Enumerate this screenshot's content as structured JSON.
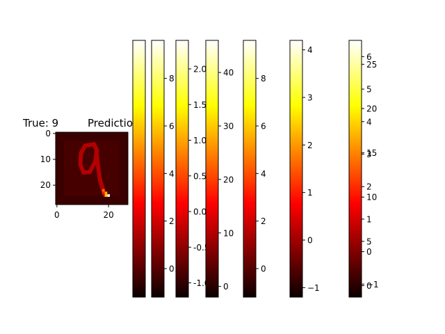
{
  "chart_data": [
    {
      "type": "heatmap",
      "title_left": "True: 9",
      "title_right": "Predictio",
      "colormap": "hot",
      "image_size": [
        28,
        28
      ],
      "x_ticks": [
        0,
        20
      ],
      "y_ticks": [
        0,
        10,
        20
      ],
      "digit_shown": "9"
    },
    {
      "type": "colorbar",
      "colormap": "hot",
      "range": [
        -1.8,
        9.4
      ],
      "ticks": [],
      "tick_labels": []
    },
    {
      "type": "colorbar",
      "colormap": "hot",
      "range": [
        -1.2,
        9.6
      ],
      "ticks": [
        0,
        2,
        4,
        6,
        8
      ],
      "tick_labels": [
        "0",
        "2",
        "4",
        "6",
        "8"
      ]
    },
    {
      "type": "colorbar",
      "colormap": "hot",
      "range": [
        -1.2,
        2.4
      ],
      "ticks": [
        -1.0,
        -0.5,
        0.0,
        0.5,
        1.0,
        1.5,
        2.0
      ],
      "tick_labels": [
        "-1.0",
        "-0.5",
        "0.0",
        "0.5",
        "1.0",
        "1.5",
        "2.0"
      ]
    },
    {
      "type": "colorbar",
      "colormap": "hot",
      "range": [
        -2,
        46
      ],
      "ticks": [
        0,
        10,
        20,
        30,
        40
      ],
      "tick_labels": [
        "0",
        "10",
        "20",
        "30",
        "40"
      ]
    },
    {
      "type": "colorbar",
      "colormap": "hot",
      "range": [
        -1.2,
        9.6
      ],
      "ticks": [
        0,
        2,
        4,
        6,
        8
      ],
      "tick_labels": [
        "0",
        "2",
        "4",
        "6",
        "8"
      ]
    },
    {
      "type": "colorbar",
      "colormap": "hot",
      "range": [
        -1.2,
        4.2
      ],
      "ticks": [
        -1,
        0,
        1,
        2,
        3,
        4
      ],
      "tick_labels": [
        "−1",
        "0",
        "1",
        "2",
        "3",
        "4"
      ]
    },
    {
      "type": "colorbar",
      "colormap": "hot",
      "range": [
        -1.4,
        6.5
      ],
      "ticks": [
        -1,
        0,
        1,
        2,
        3,
        4,
        5,
        6
      ],
      "tick_labels": [
        "−1",
        "0",
        "1",
        "2",
        "3",
        "4",
        "5",
        "6"
      ]
    },
    {
      "type": "colorbar",
      "colormap": "hot",
      "range": [
        -1.3,
        27.7
      ],
      "ticks": [
        0,
        5,
        10,
        15,
        20,
        25
      ],
      "tick_labels": [
        "0",
        "5",
        "10",
        "15",
        "20",
        "25"
      ]
    }
  ]
}
